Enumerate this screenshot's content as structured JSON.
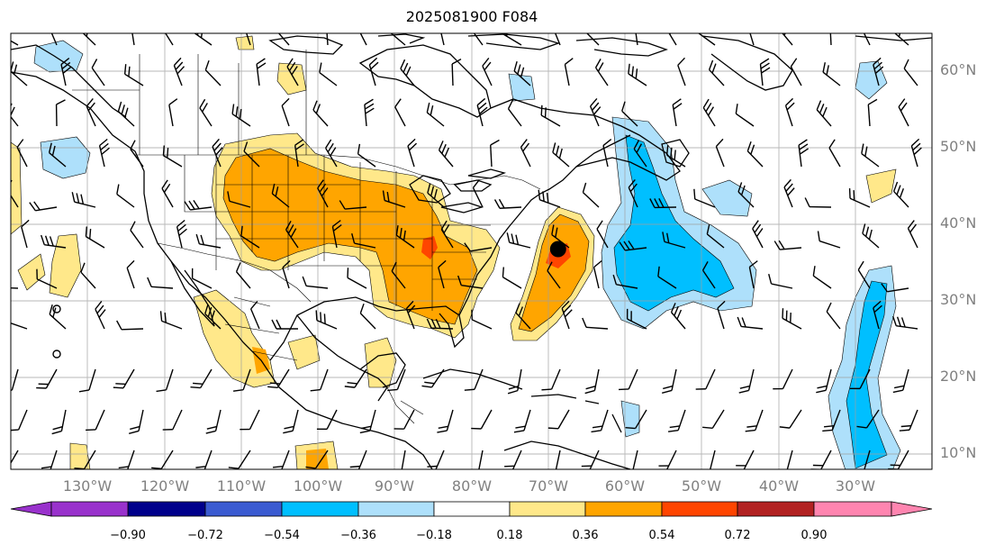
{
  "title": "2025081900 F084",
  "map": {
    "projection": "PlateCarree",
    "lon_range": [
      -140,
      -20
    ],
    "lat_range": [
      8,
      65
    ],
    "gridlines": true,
    "features": [
      "coastlines",
      "country-borders",
      "us-state-borders"
    ],
    "storm_marker": {
      "lon": -68.7,
      "lat": 36.8,
      "color": "#000000"
    },
    "lat_labels": [
      {
        "value": 60,
        "text": "60°N"
      },
      {
        "value": 50,
        "text": "50°N"
      },
      {
        "value": 40,
        "text": "40°N"
      },
      {
        "value": 30,
        "text": "30°N"
      },
      {
        "value": 20,
        "text": "20°N"
      },
      {
        "value": 10,
        "text": "10°N"
      }
    ],
    "lon_labels": [
      {
        "value": -130,
        "text": "130°W"
      },
      {
        "value": -120,
        "text": "120°W"
      },
      {
        "value": -110,
        "text": "110°W"
      },
      {
        "value": -100,
        "text": "100°W"
      },
      {
        "value": -90,
        "text": "90°W"
      },
      {
        "value": -80,
        "text": "80°W"
      },
      {
        "value": -70,
        "text": "70°W"
      },
      {
        "value": -60,
        "text": "60°W"
      },
      {
        "value": -50,
        "text": "50°W"
      },
      {
        "value": -40,
        "text": "40°W"
      },
      {
        "value": -30,
        "text": "30°W"
      }
    ]
  },
  "colorbar": {
    "extend": "both",
    "under_color": "#9932cc",
    "over_color": "#ff85b0",
    "colors": [
      "#00008b",
      "#3b5bd1",
      "#00bfff",
      "#aee0fb",
      "#ffffff",
      "#ffe88a",
      "#ffa500",
      "#ff4500",
      "#b22222"
    ],
    "ticks": [
      "−0.90",
      "−0.72",
      "−0.54",
      "−0.36",
      "−0.18",
      "0.18",
      "0.36",
      "0.54",
      "0.72",
      "0.90"
    ]
  }
}
